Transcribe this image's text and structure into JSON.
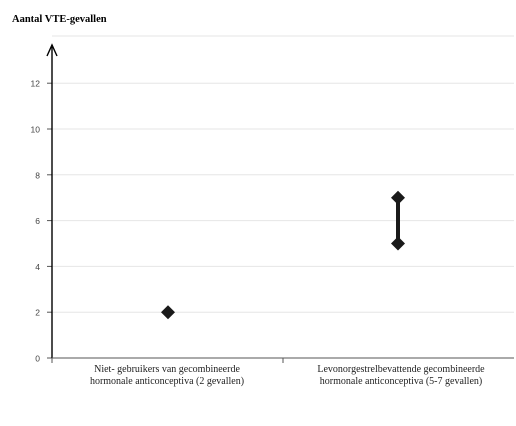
{
  "chart_data": {
    "type": "scatter",
    "title": "",
    "ylabel": "Aantal VTE-gevallen",
    "xlabel": "",
    "ylim": [
      0,
      13
    ],
    "yticks": [
      "0",
      "2",
      "4",
      "6",
      "8",
      "10",
      "12"
    ],
    "grid": true,
    "categories": [
      {
        "line1": "Niet- gebruikers van gecombineerde",
        "line2": "hormonale anticonceptiva (2 gevallen)"
      },
      {
        "line1": "Levonorgestrelbevattende gecombineerde",
        "line2": "hormonale anticonceptiva (5-7 gevallen)"
      }
    ],
    "points": [
      {
        "category": 0,
        "value": 2
      },
      {
        "category": 1,
        "low": 5,
        "high": 7
      }
    ],
    "colors": {
      "marker": "#1a1a1a",
      "axis": "#555555",
      "grid": "#e6e6e6",
      "tick_text": "#444444"
    }
  }
}
